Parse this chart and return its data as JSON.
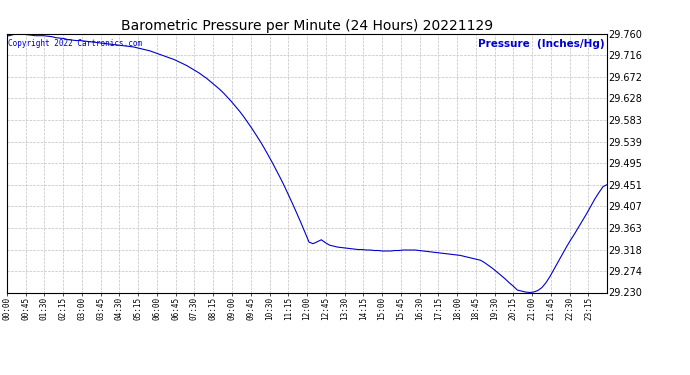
{
  "title": "Barometric Pressure per Minute (24 Hours) 20221129",
  "ylabel": "Pressure  (Inches/Hg)",
  "copyright_text": "Copyright 2022 Cartronics.com",
  "line_color": "#0000cc",
  "ylabel_color": "#0000cc",
  "copyright_color": "#0000cc",
  "background_color": "#ffffff",
  "grid_color": "#c0c0c0",
  "title_color": "#000000",
  "ylim": [
    29.23,
    29.76
  ],
  "yticks": [
    29.23,
    29.274,
    29.318,
    29.363,
    29.407,
    29.451,
    29.495,
    29.539,
    29.583,
    29.628,
    29.672,
    29.716,
    29.76
  ],
  "xtick_labels": [
    "00:00",
    "00:45",
    "01:30",
    "02:15",
    "03:00",
    "03:45",
    "04:30",
    "05:15",
    "06:00",
    "06:45",
    "07:30",
    "08:15",
    "09:00",
    "09:45",
    "10:30",
    "11:15",
    "12:00",
    "12:45",
    "13:30",
    "14:15",
    "15:00",
    "15:45",
    "16:30",
    "17:15",
    "18:00",
    "18:45",
    "19:30",
    "20:15",
    "21:00",
    "21:45",
    "22:30",
    "23:15"
  ],
  "pressure_data": [
    29.755,
    29.757,
    29.759,
    29.76,
    29.759,
    29.758,
    29.757,
    29.756,
    29.756,
    29.756,
    29.755,
    29.754,
    29.752,
    29.751,
    29.75,
    29.748,
    29.747,
    29.746,
    29.746,
    29.745,
    29.744,
    29.743,
    29.742,
    29.741,
    29.74,
    29.739,
    29.738,
    29.737,
    29.736,
    29.735,
    29.734,
    29.733,
    29.731,
    29.729,
    29.727,
    29.725,
    29.722,
    29.719,
    29.716,
    29.713,
    29.71,
    29.707,
    29.703,
    29.699,
    29.695,
    29.69,
    29.685,
    29.68,
    29.674,
    29.668,
    29.661,
    29.654,
    29.647,
    29.639,
    29.63,
    29.621,
    29.611,
    29.601,
    29.59,
    29.578,
    29.566,
    29.553,
    29.54,
    29.526,
    29.511,
    29.496,
    29.48,
    29.464,
    29.447,
    29.429,
    29.411,
    29.392,
    29.373,
    29.353,
    29.333,
    29.33,
    29.334,
    29.338,
    29.332,
    29.327,
    29.325,
    29.323,
    29.322,
    29.321,
    29.32,
    29.319,
    29.318,
    29.318,
    29.317,
    29.317,
    29.316,
    29.316,
    29.315,
    29.315,
    29.315,
    29.316,
    29.316,
    29.317,
    29.317,
    29.317,
    29.317,
    29.316,
    29.315,
    29.314,
    29.313,
    29.312,
    29.311,
    29.31,
    29.309,
    29.308,
    29.307,
    29.306,
    29.304,
    29.302,
    29.3,
    29.298,
    29.296,
    29.291,
    29.285,
    29.279,
    29.272,
    29.265,
    29.258,
    29.25,
    29.243,
    29.235,
    29.233,
    29.231,
    29.23,
    29.231,
    29.234,
    29.24,
    29.25,
    29.263,
    29.278,
    29.293,
    29.308,
    29.323,
    29.337,
    29.35,
    29.364,
    29.378,
    29.392,
    29.407,
    29.422,
    29.435,
    29.447,
    29.451
  ]
}
